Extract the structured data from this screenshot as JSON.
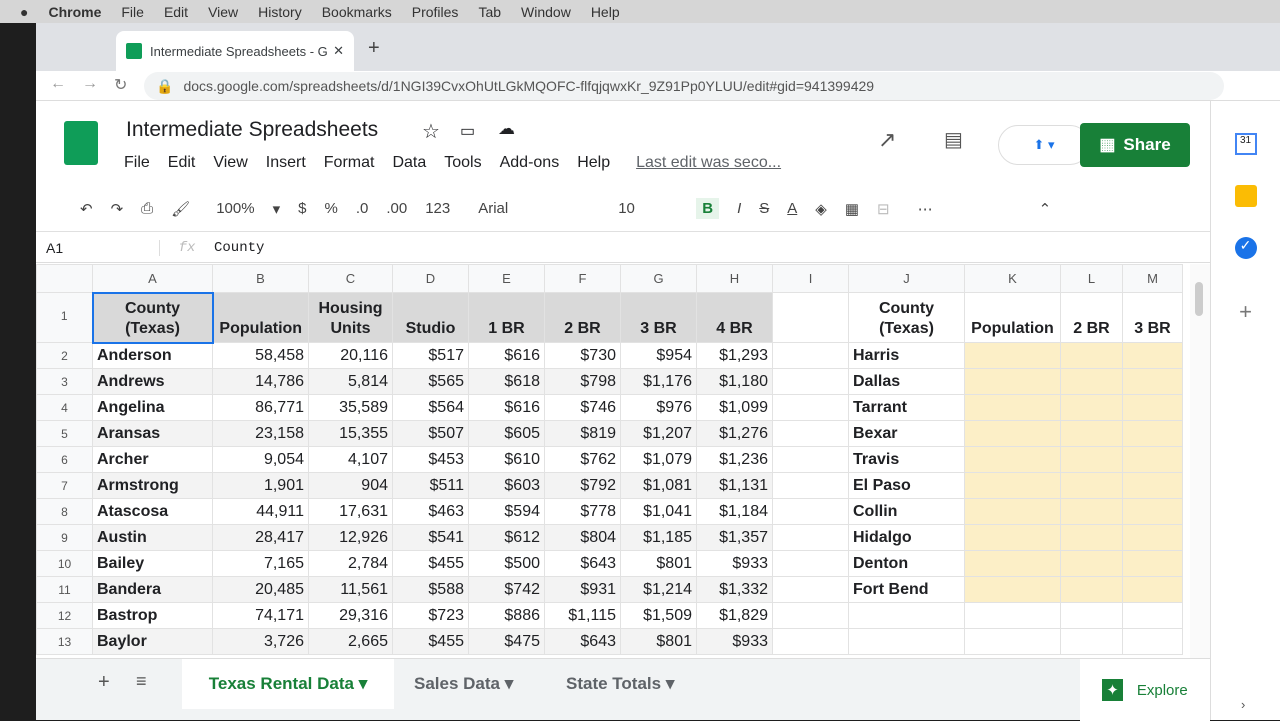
{
  "menubar": {
    "app": "Chrome",
    "items": [
      "File",
      "Edit",
      "View",
      "History",
      "Bookmarks",
      "Profiles",
      "Tab",
      "Window",
      "Help"
    ]
  },
  "browser": {
    "tab_title": "Intermediate Spreadsheets - G",
    "url": "docs.google.com/spreadsheets/d/1NGI39CvxOhUtLGkMQOFC-flfqjqwxKr_9Z91Pp0YLUU/edit#gid=941399429"
  },
  "doc": {
    "title": "Intermediate Spreadsheets",
    "menus": [
      "File",
      "Edit",
      "View",
      "Insert",
      "Format",
      "Data",
      "Tools",
      "Add-ons",
      "Help"
    ],
    "last_edit": "Last edit was seco...",
    "share": "Share"
  },
  "toolbar": {
    "zoom": "100%",
    "currency": "$",
    "percent": "%",
    "dec_less": ".0",
    "dec_more": ".00",
    "format": "123",
    "font": "Arial",
    "size": "10",
    "bold": "B",
    "italic": "I",
    "strike": "S",
    "textcolor": "A",
    "more": "⋯"
  },
  "formula": {
    "cellref": "A1",
    "fx": "fx",
    "value": "County"
  },
  "grid": {
    "columns": [
      "A",
      "B",
      "C",
      "D",
      "E",
      "F",
      "G",
      "H",
      "I",
      "J",
      "K",
      "L",
      "M"
    ],
    "header": [
      "County (Texas)",
      "Population",
      "Housing Units",
      "Studio",
      "1 BR",
      "2 BR",
      "3 BR",
      "4 BR",
      "",
      "County (Texas)",
      "Population",
      "2 BR",
      "3 BR"
    ],
    "rows": [
      [
        "Anderson",
        "58,458",
        "20,116",
        "$517",
        "$616",
        "$730",
        "$954",
        "$1,293",
        "Harris"
      ],
      [
        "Andrews",
        "14,786",
        "5,814",
        "$565",
        "$618",
        "$798",
        "$1,176",
        "$1,180",
        "Dallas"
      ],
      [
        "Angelina",
        "86,771",
        "35,589",
        "$564",
        "$616",
        "$746",
        "$976",
        "$1,099",
        "Tarrant"
      ],
      [
        "Aransas",
        "23,158",
        "15,355",
        "$507",
        "$605",
        "$819",
        "$1,207",
        "$1,276",
        "Bexar"
      ],
      [
        "Archer",
        "9,054",
        "4,107",
        "$453",
        "$610",
        "$762",
        "$1,079",
        "$1,236",
        "Travis"
      ],
      [
        "Armstrong",
        "1,901",
        "904",
        "$511",
        "$603",
        "$792",
        "$1,081",
        "$1,131",
        "El Paso"
      ],
      [
        "Atascosa",
        "44,911",
        "17,631",
        "$463",
        "$594",
        "$778",
        "$1,041",
        "$1,184",
        "Collin"
      ],
      [
        "Austin",
        "28,417",
        "12,926",
        "$541",
        "$612",
        "$804",
        "$1,185",
        "$1,357",
        "Hidalgo"
      ],
      [
        "Bailey",
        "7,165",
        "2,784",
        "$455",
        "$500",
        "$643",
        "$801",
        "$933",
        "Denton"
      ],
      [
        "Bandera",
        "20,485",
        "11,561",
        "$588",
        "$742",
        "$931",
        "$1,214",
        "$1,332",
        "Fort Bend"
      ],
      [
        "Bastrop",
        "74,171",
        "29,316",
        "$723",
        "$886",
        "$1,115",
        "$1,509",
        "$1,829",
        ""
      ],
      [
        "Baylor",
        "3,726",
        "2,665",
        "$455",
        "$475",
        "$643",
        "$801",
        "$933",
        ""
      ]
    ]
  },
  "sheets": {
    "tabs": [
      "Texas Rental Data",
      "Sales Data",
      "State Totals"
    ],
    "active": 0,
    "explore": "Explore"
  },
  "colors": {
    "share": "#188038",
    "highlight": "#fcefc7",
    "active_tab": "#188038"
  }
}
